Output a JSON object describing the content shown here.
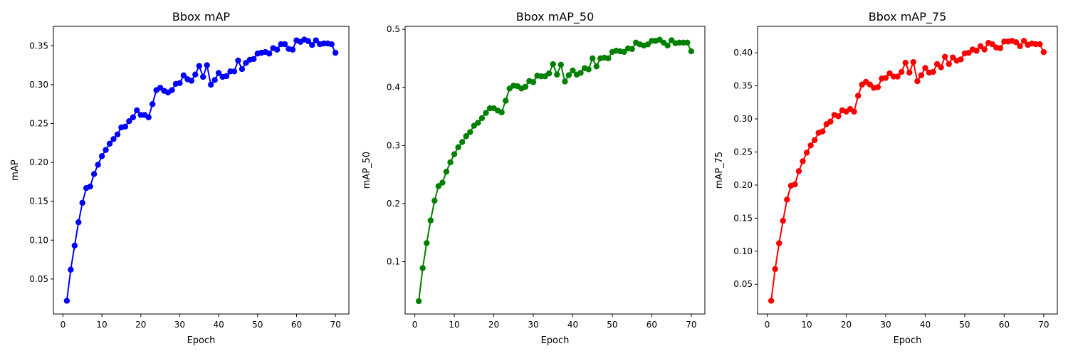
{
  "chart_data": [
    {
      "type": "line",
      "title": "Bbox mAP",
      "xlabel": "Epoch",
      "ylabel": "mAP",
      "color": "#0000ff",
      "xlim": [
        -2.45,
        73.45
      ],
      "ylim": [
        0.005,
        0.375
      ],
      "xticks": [
        0,
        10,
        20,
        30,
        40,
        50,
        60,
        70
      ],
      "xtick_labels": [
        "0",
        "10",
        "20",
        "30",
        "40",
        "50",
        "60",
        "70"
      ],
      "yticks": [
        0.05,
        0.1,
        0.15,
        0.2,
        0.25,
        0.3,
        0.35
      ],
      "ytick_labels": [
        "0.05",
        "0.10",
        "0.15",
        "0.20",
        "0.25",
        "0.30",
        "0.35"
      ],
      "x": [
        1,
        2,
        3,
        4,
        5,
        6,
        7,
        8,
        9,
        10,
        11,
        12,
        13,
        14,
        15,
        16,
        17,
        18,
        19,
        20,
        21,
        22,
        23,
        24,
        25,
        26,
        27,
        28,
        29,
        30,
        31,
        32,
        33,
        34,
        35,
        36,
        37,
        38,
        39,
        40,
        41,
        42,
        43,
        44,
        45,
        46,
        47,
        48,
        49,
        50,
        51,
        52,
        53,
        54,
        55,
        56,
        57,
        58,
        59,
        60,
        61,
        62,
        63,
        64,
        65,
        66,
        67,
        68,
        69,
        70
      ],
      "values": [
        0.022,
        0.062,
        0.093,
        0.123,
        0.148,
        0.167,
        0.169,
        0.185,
        0.197,
        0.208,
        0.216,
        0.224,
        0.23,
        0.236,
        0.245,
        0.246,
        0.253,
        0.258,
        0.267,
        0.261,
        0.261,
        0.258,
        0.275,
        0.293,
        0.296,
        0.292,
        0.29,
        0.293,
        0.301,
        0.302,
        0.312,
        0.307,
        0.305,
        0.313,
        0.324,
        0.31,
        0.325,
        0.3,
        0.306,
        0.315,
        0.31,
        0.311,
        0.317,
        0.317,
        0.331,
        0.32,
        0.328,
        0.332,
        0.333,
        0.34,
        0.341,
        0.342,
        0.34,
        0.347,
        0.345,
        0.352,
        0.352,
        0.346,
        0.345,
        0.357,
        0.355,
        0.358,
        0.356,
        0.351,
        0.357,
        0.352,
        0.353,
        0.353,
        0.352,
        0.341
      ]
    },
    {
      "type": "line",
      "title": "Bbox mAP_50",
      "xlabel": "Epoch",
      "ylabel": "mAP_50",
      "color": "#008000",
      "xlim": [
        -2.45,
        73.45
      ],
      "ylim": [
        0.01,
        0.505
      ],
      "xticks": [
        0,
        10,
        20,
        30,
        40,
        50,
        60,
        70
      ],
      "xtick_labels": [
        "0",
        "10",
        "20",
        "30",
        "40",
        "50",
        "60",
        "70"
      ],
      "yticks": [
        0.1,
        0.2,
        0.3,
        0.4,
        0.5
      ],
      "ytick_labels": [
        "0.1",
        "0.2",
        "0.3",
        "0.4",
        "0.5"
      ],
      "x": [
        1,
        2,
        3,
        4,
        5,
        6,
        7,
        8,
        9,
        10,
        11,
        12,
        13,
        14,
        15,
        16,
        17,
        18,
        19,
        20,
        21,
        22,
        23,
        24,
        25,
        26,
        27,
        28,
        29,
        30,
        31,
        32,
        33,
        34,
        35,
        36,
        37,
        38,
        39,
        40,
        41,
        42,
        43,
        44,
        45,
        46,
        47,
        48,
        49,
        50,
        51,
        52,
        53,
        54,
        55,
        56,
        57,
        58,
        59,
        60,
        61,
        62,
        63,
        64,
        65,
        66,
        67,
        68,
        69,
        70
      ],
      "values": [
        0.032,
        0.089,
        0.132,
        0.171,
        0.205,
        0.23,
        0.236,
        0.255,
        0.271,
        0.285,
        0.297,
        0.306,
        0.316,
        0.323,
        0.334,
        0.339,
        0.347,
        0.356,
        0.364,
        0.364,
        0.36,
        0.357,
        0.377,
        0.398,
        0.403,
        0.402,
        0.398,
        0.401,
        0.411,
        0.409,
        0.42,
        0.419,
        0.419,
        0.424,
        0.44,
        0.422,
        0.439,
        0.41,
        0.421,
        0.429,
        0.422,
        0.425,
        0.433,
        0.431,
        0.45,
        0.436,
        0.45,
        0.451,
        0.45,
        0.461,
        0.463,
        0.462,
        0.461,
        0.467,
        0.466,
        0.477,
        0.474,
        0.472,
        0.474,
        0.48,
        0.48,
        0.482,
        0.477,
        0.472,
        0.481,
        0.476,
        0.477,
        0.477,
        0.477,
        0.462
      ]
    },
    {
      "type": "line",
      "title": "Bbox mAP_75",
      "xlabel": "Epoch",
      "ylabel": "mAP_75",
      "color": "#ff0000",
      "xlim": [
        -2.45,
        73.45
      ],
      "ylim": [
        0.005,
        0.44
      ],
      "xticks": [
        0,
        10,
        20,
        30,
        40,
        50,
        60,
        70
      ],
      "xtick_labels": [
        "0",
        "10",
        "20",
        "30",
        "40",
        "50",
        "60",
        "70"
      ],
      "yticks": [
        0.05,
        0.1,
        0.15,
        0.2,
        0.25,
        0.3,
        0.35,
        0.4
      ],
      "ytick_labels": [
        "0.05",
        "0.10",
        "0.15",
        "0.20",
        "0.25",
        "0.30",
        "0.35",
        "0.40"
      ],
      "x": [
        1,
        2,
        3,
        4,
        5,
        6,
        7,
        8,
        9,
        10,
        11,
        12,
        13,
        14,
        15,
        16,
        17,
        18,
        19,
        20,
        21,
        22,
        23,
        24,
        25,
        26,
        27,
        28,
        29,
        30,
        31,
        32,
        33,
        34,
        35,
        36,
        37,
        38,
        39,
        40,
        41,
        42,
        43,
        44,
        45,
        46,
        47,
        48,
        49,
        50,
        51,
        52,
        53,
        54,
        55,
        56,
        57,
        58,
        59,
        60,
        61,
        62,
        63,
        64,
        65,
        66,
        67,
        68,
        69,
        70
      ],
      "values": [
        0.025,
        0.073,
        0.112,
        0.146,
        0.178,
        0.199,
        0.201,
        0.221,
        0.236,
        0.249,
        0.26,
        0.268,
        0.279,
        0.281,
        0.292,
        0.296,
        0.306,
        0.304,
        0.313,
        0.311,
        0.315,
        0.311,
        0.335,
        0.352,
        0.356,
        0.352,
        0.347,
        0.348,
        0.361,
        0.362,
        0.369,
        0.364,
        0.364,
        0.371,
        0.385,
        0.37,
        0.386,
        0.357,
        0.366,
        0.377,
        0.37,
        0.371,
        0.383,
        0.378,
        0.394,
        0.383,
        0.393,
        0.388,
        0.39,
        0.399,
        0.4,
        0.405,
        0.403,
        0.41,
        0.405,
        0.415,
        0.413,
        0.408,
        0.407,
        0.417,
        0.417,
        0.418,
        0.416,
        0.41,
        0.418,
        0.412,
        0.414,
        0.413,
        0.413,
        0.401
      ]
    }
  ]
}
